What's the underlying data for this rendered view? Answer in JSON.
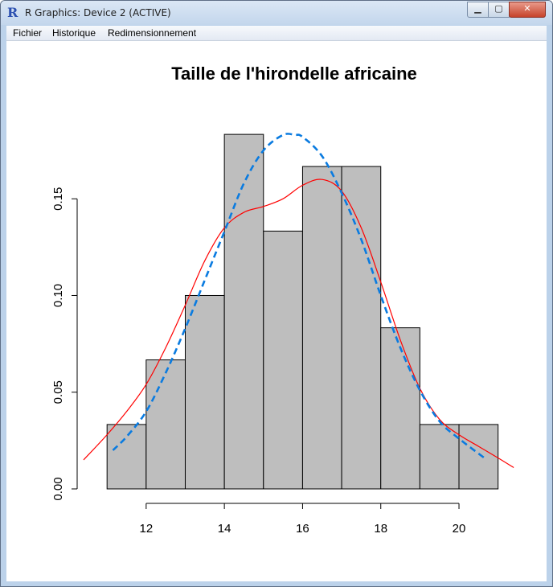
{
  "window": {
    "title": "R Graphics: Device 2 (ACTIVE)",
    "app_icon": "R-logo-icon",
    "controls": {
      "minimize": "minimize-icon",
      "maximize": "maximize-icon",
      "close": "close-icon"
    }
  },
  "menu": {
    "items": [
      "Fichier",
      "Historique",
      "Redimensionnement"
    ]
  },
  "colors": {
    "bar_fill": "#bebebe",
    "bar_stroke": "#000000",
    "density_red": "#ff0000",
    "normal_blue": "#0a7be0"
  },
  "chart_data": {
    "type": "bar",
    "title": "Taille de l'hirondelle africaine",
    "xlabel": "",
    "ylabel": "",
    "bins": [
      {
        "from": 11,
        "to": 12,
        "density": 0.0333
      },
      {
        "from": 12,
        "to": 13,
        "density": 0.0667
      },
      {
        "from": 13,
        "to": 14,
        "density": 0.1
      },
      {
        "from": 14,
        "to": 15,
        "density": 0.1833
      },
      {
        "from": 15,
        "to": 16,
        "density": 0.1333
      },
      {
        "from": 16,
        "to": 17,
        "density": 0.1667
      },
      {
        "from": 17,
        "to": 18,
        "density": 0.1667
      },
      {
        "from": 18,
        "to": 19,
        "density": 0.0833
      },
      {
        "from": 19,
        "to": 20,
        "density": 0.0333
      },
      {
        "from": 20,
        "to": 21,
        "density": 0.0333
      }
    ],
    "xlim": [
      10.4,
      21.5
    ],
    "ylim": [
      0,
      0.19
    ],
    "x_ticks": [
      12,
      14,
      16,
      18,
      20
    ],
    "x_tick_labels": [
      "12",
      "14",
      "16",
      "18",
      "20"
    ],
    "y_ticks": [
      0,
      0.05,
      0.1,
      0.15
    ],
    "y_tick_labels": [
      "0.00",
      "0.05",
      "0.10",
      "0.15"
    ],
    "series": [
      {
        "line": "solid",
        "color": "#ff0000",
        "x": [
          10.4,
          11.0,
          11.5,
          12.0,
          12.5,
          13.0,
          13.5,
          14.0,
          14.5,
          15.0,
          15.5,
          16.0,
          16.5,
          17.0,
          17.5,
          18.0,
          18.5,
          19.0,
          19.5,
          20.0,
          20.5,
          21.0,
          21.4
        ],
        "y": [
          0.015,
          0.028,
          0.04,
          0.054,
          0.073,
          0.095,
          0.118,
          0.135,
          0.143,
          0.146,
          0.15,
          0.157,
          0.16,
          0.154,
          0.135,
          0.107,
          0.077,
          0.052,
          0.036,
          0.028,
          0.022,
          0.016,
          0.011
        ]
      },
      {
        "line": "dashed",
        "color": "#0a7be0",
        "x": [
          11.15,
          11.5,
          12.0,
          12.5,
          13.0,
          13.5,
          14.0,
          14.5,
          15.0,
          15.5,
          15.8,
          16.0,
          16.5,
          17.0,
          17.5,
          18.0,
          18.5,
          19.0,
          19.5,
          20.0,
          20.65
        ],
        "y": [
          0.02,
          0.027,
          0.04,
          0.06,
          0.083,
          0.108,
          0.133,
          0.158,
          0.175,
          0.183,
          0.183,
          0.182,
          0.172,
          0.153,
          0.129,
          0.1,
          0.073,
          0.051,
          0.035,
          0.026,
          0.016
        ]
      }
    ]
  }
}
